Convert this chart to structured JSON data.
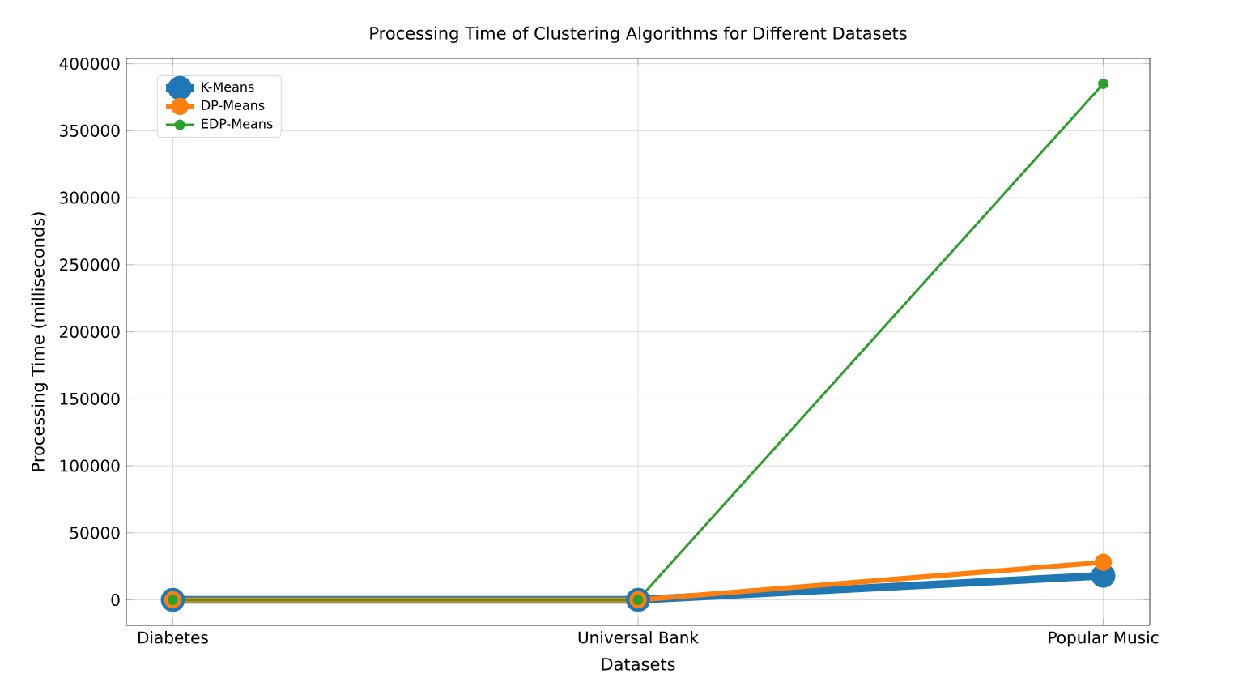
{
  "chart_data": {
    "type": "line",
    "title": "Processing Time of Clustering Algorithms for Different Datasets",
    "xlabel": "Datasets",
    "ylabel": "Processing Time (milliseconds)",
    "categories": [
      "Diabetes",
      "Universal Bank",
      "Popular Music"
    ],
    "series": [
      {
        "name": "K-Means",
        "color": "#1f77b4",
        "values": [
          0,
          0,
          18000
        ]
      },
      {
        "name": "DP-Means",
        "color": "#ff7f0e",
        "values": [
          0,
          0,
          28000
        ]
      },
      {
        "name": "EDP-Means",
        "color": "#2ca02c",
        "values": [
          0,
          0,
          385000
        ]
      }
    ],
    "ylim": [
      -19000,
      404000
    ],
    "yticks": [
      0,
      50000,
      100000,
      150000,
      200000,
      250000,
      300000,
      350000,
      400000
    ],
    "grid": true,
    "legend": "top left",
    "marker": "circle",
    "line_style": "solid"
  }
}
